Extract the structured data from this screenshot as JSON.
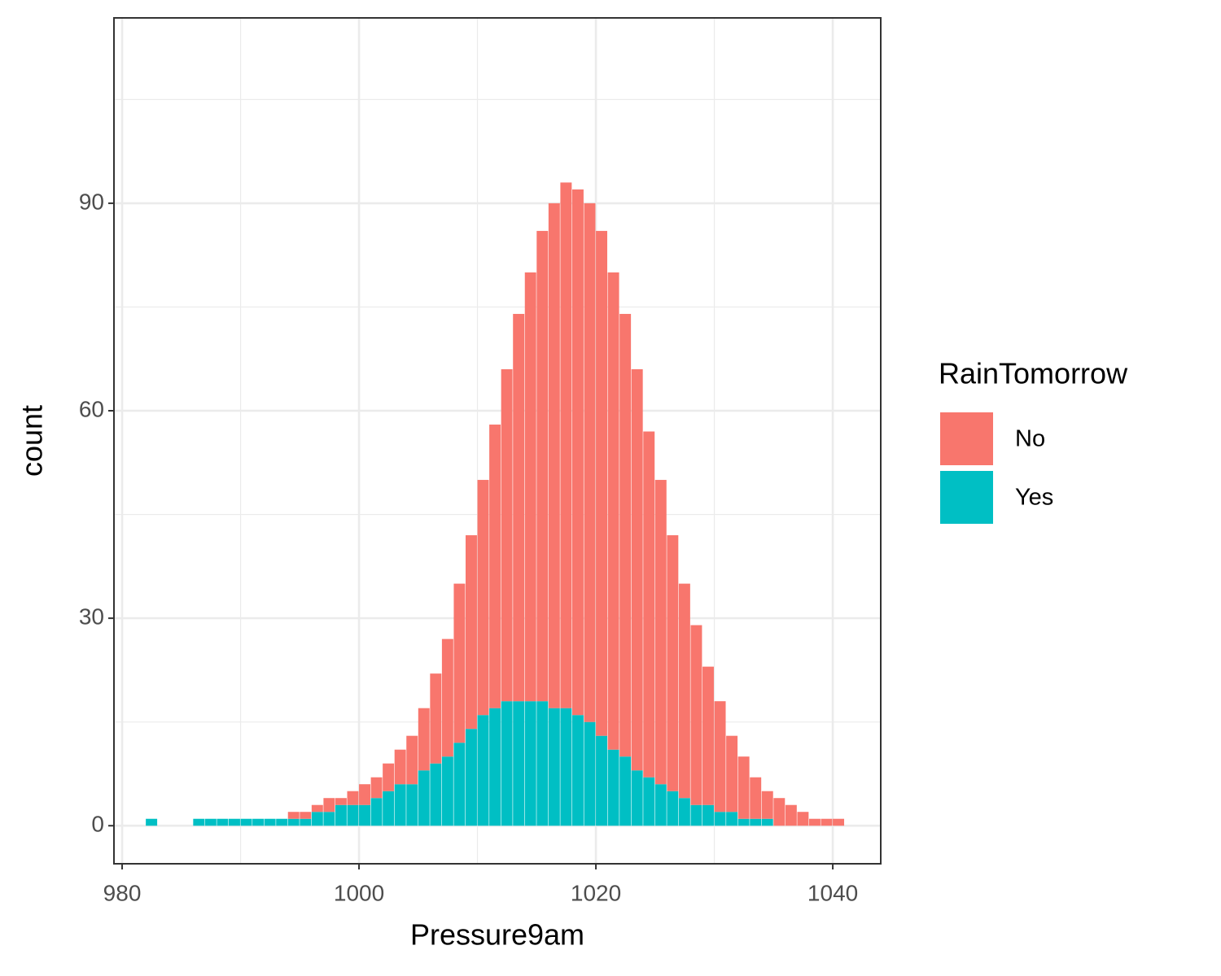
{
  "chart_data": {
    "type": "histogram",
    "stacked": true,
    "x_label": "Pressure9am",
    "y_label": "count",
    "legend_title": "RainTomorrow",
    "legend_position": "right",
    "grid": true,
    "bins": [
      982,
      983,
      984,
      985,
      986,
      987,
      988,
      989,
      990,
      991,
      992,
      993,
      994,
      995,
      996,
      997,
      998,
      999,
      1000,
      1001,
      1002,
      1003,
      1004,
      1005,
      1006,
      1007,
      1008,
      1009,
      1010,
      1011,
      1012,
      1013,
      1014,
      1015,
      1016,
      1017,
      1018,
      1019,
      1020,
      1021,
      1022,
      1023,
      1024,
      1025,
      1026,
      1027,
      1028,
      1029,
      1030,
      1031,
      1032,
      1033,
      1034,
      1035,
      1036,
      1037,
      1038,
      1039,
      1040,
      1041,
      1042
    ],
    "series": [
      {
        "name": "No",
        "color": "#f8766d",
        "values": [
          0,
          0,
          0,
          0,
          0,
          0,
          0,
          0,
          0,
          0,
          0,
          0,
          1,
          1,
          1,
          2,
          1,
          2,
          3,
          3,
          4,
          5,
          7,
          9,
          13,
          17,
          23,
          28,
          34,
          41,
          48,
          56,
          62,
          68,
          73,
          76,
          76,
          75,
          73,
          69,
          64,
          58,
          50,
          44,
          37,
          31,
          26,
          20,
          16,
          11,
          9,
          6,
          4,
          4,
          3,
          2,
          1,
          1,
          1,
          0
        ]
      },
      {
        "name": "Yes",
        "color": "#00bfc4",
        "values": [
          1,
          0,
          0,
          0,
          1,
          1,
          1,
          1,
          1,
          1,
          1,
          1,
          1,
          1,
          2,
          2,
          3,
          3,
          3,
          4,
          5,
          6,
          6,
          8,
          9,
          10,
          12,
          14,
          16,
          17,
          18,
          18,
          18,
          18,
          17,
          17,
          16,
          15,
          13,
          11,
          10,
          8,
          7,
          6,
          5,
          4,
          3,
          3,
          2,
          2,
          1,
          1,
          1,
          0,
          0,
          0,
          0,
          0,
          0,
          0
        ]
      }
    ],
    "xlim": [
      979.31,
      1044.05
    ],
    "xticks": [
      980,
      1000,
      1020,
      1040
    ],
    "ylim": [
      -5.5,
      116.8
    ],
    "yticks": [
      0,
      30,
      60,
      90
    ]
  }
}
